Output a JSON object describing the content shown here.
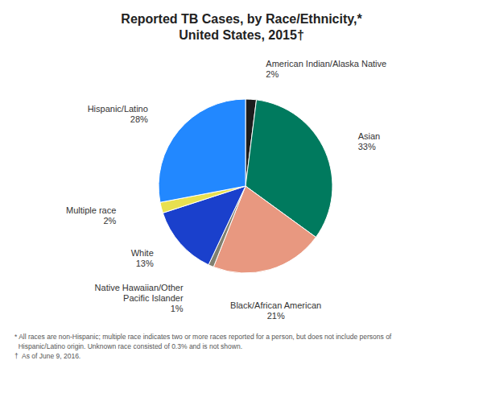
{
  "chart_data": {
    "type": "pie",
    "title": "Reported TB Cases, by Race/Ethnicity,*\nUnited States, 2015†",
    "categories": [
      "American Indian/Alaska Native",
      "Asian",
      "Black/African American",
      "Native Hawaiian/Other\nPacific Islander",
      "White",
      "Multiple race",
      "Hispanic/Latino"
    ],
    "values": [
      2,
      33,
      21,
      1,
      13,
      2,
      28
    ],
    "value_labels": [
      "2%",
      "33%",
      "21%",
      "1%",
      "13%",
      "2%",
      "28%"
    ],
    "data_labels": true,
    "colors": [
      "#1c1c1c",
      "#007a5e",
      "#e89880",
      "#808070",
      "#1a40cc",
      "#e8e050",
      "#2288ff"
    ],
    "annotations": [
      "* All races are non-Hispanic; multiple race indicates two or more races reported for a person, but does not include persons of",
      "  Hispanic/Latino origin. Unknown race consisted of 0.3% and is not shown.",
      "†  As of June 9, 2016."
    ]
  }
}
